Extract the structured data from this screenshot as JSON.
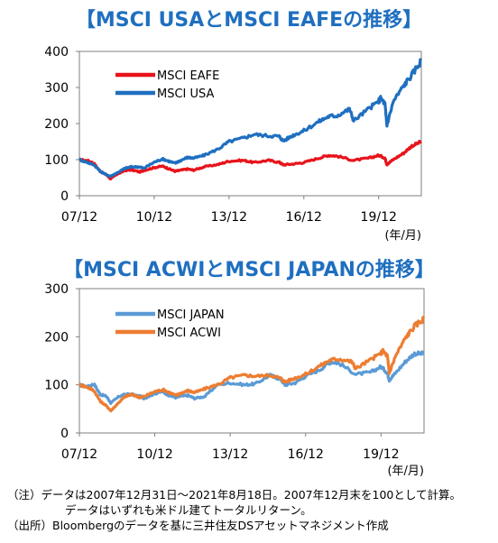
{
  "title1": "【MSCI USAとMSCI EAFEの推移】",
  "title2": "【MSCI ACWIとMSCI JAPANの推移】",
  "notes": {
    "line1": "（注）データは2007年12月31日～2021年8月18日。2007年12月末を100として計算。",
    "line2": "データはいずれも米ドル建てトータルリターン。",
    "line3": "（出所）Bloombergのデータを基に三井住友DSアセットマネジメント作成"
  },
  "chart_data": [
    {
      "type": "line",
      "unit_label": "(年/月)",
      "x_tick_labels": [
        "07/12",
        "10/12",
        "13/12",
        "16/12",
        "19/12"
      ],
      "x_ticks": [
        2007.92,
        2010.92,
        2013.92,
        2016.92,
        2019.92
      ],
      "xlim": [
        2007.92,
        2021.63
      ],
      "ylim": [
        0,
        400
      ],
      "y_ticks": [
        0,
        100,
        200,
        300,
        400
      ],
      "legend_position": "top-left",
      "series": [
        {
          "name": "MSCI EAFE",
          "color": "#e8131b",
          "x": [
            2007.92,
            2008.25,
            2008.5,
            2008.75,
            2009.0,
            2009.17,
            2009.5,
            2009.75,
            2010.0,
            2010.33,
            2010.5,
            2010.92,
            2011.25,
            2011.5,
            2011.75,
            2011.92,
            2012.25,
            2012.5,
            2012.92,
            2013.5,
            2013.92,
            2014.5,
            2014.92,
            2015.5,
            2015.92,
            2016.1,
            2016.5,
            2016.92,
            2017.5,
            2017.92,
            2018.25,
            2018.92,
            2019.5,
            2019.92,
            2020.17,
            2020.25,
            2020.5,
            2020.92,
            2021.25,
            2021.63
          ],
          "values": [
            100,
            97,
            90,
            68,
            58,
            47,
            62,
            70,
            72,
            66,
            70,
            78,
            82,
            75,
            68,
            70,
            74,
            71,
            80,
            87,
            96,
            98,
            92,
            98,
            93,
            86,
            88,
            92,
            104,
            112,
            110,
            98,
            104,
            112,
            105,
            87,
            100,
            118,
            138,
            150
          ]
        },
        {
          "name": "MSCI USA",
          "color": "#1f6fc0",
          "x": [
            2007.92,
            2008.25,
            2008.5,
            2008.75,
            2009.0,
            2009.17,
            2009.5,
            2009.75,
            2010.0,
            2010.33,
            2010.5,
            2010.92,
            2011.25,
            2011.5,
            2011.75,
            2011.92,
            2012.25,
            2012.5,
            2012.92,
            2013.5,
            2013.92,
            2014.5,
            2014.92,
            2015.5,
            2015.92,
            2016.1,
            2016.5,
            2016.92,
            2017.5,
            2017.92,
            2018.25,
            2018.75,
            2018.92,
            2019.5,
            2019.92,
            2020.0,
            2020.17,
            2020.25,
            2020.5,
            2020.92,
            2021.25,
            2021.63
          ],
          "values": [
            100,
            92,
            86,
            68,
            58,
            54,
            66,
            76,
            80,
            80,
            76,
            93,
            102,
            96,
            90,
            96,
            106,
            104,
            112,
            130,
            150,
            160,
            170,
            166,
            165,
            152,
            168,
            180,
            205,
            220,
            222,
            240,
            208,
            240,
            262,
            270,
            255,
            195,
            260,
            305,
            335,
            375
          ]
        }
      ]
    },
    {
      "type": "line",
      "unit_label": "(年/月)",
      "x_tick_labels": [
        "07/12",
        "10/12",
        "13/12",
        "16/12",
        "19/12"
      ],
      "x_ticks": [
        2007.92,
        2010.92,
        2013.92,
        2016.92,
        2019.92
      ],
      "xlim": [
        2007.92,
        2021.63
      ],
      "ylim": [
        0,
        300
      ],
      "y_ticks": [
        0,
        100,
        200,
        300
      ],
      "legend_position": "top-left",
      "series": [
        {
          "name": "MSCI JAPAN",
          "color": "#5b9bd5",
          "x": [
            2007.92,
            2008.25,
            2008.5,
            2008.75,
            2009.0,
            2009.17,
            2009.5,
            2009.75,
            2010.0,
            2010.33,
            2010.5,
            2010.92,
            2011.2,
            2011.5,
            2011.75,
            2011.92,
            2012.25,
            2012.5,
            2012.92,
            2013.4,
            2013.92,
            2014.5,
            2014.92,
            2015.5,
            2015.92,
            2016.1,
            2016.5,
            2016.92,
            2017.5,
            2017.92,
            2018.25,
            2018.92,
            2019.5,
            2019.92,
            2020.17,
            2020.25,
            2020.5,
            2020.92,
            2021.25,
            2021.63
          ],
          "values": [
            100,
            96,
            102,
            80,
            76,
            62,
            76,
            80,
            80,
            76,
            72,
            82,
            86,
            78,
            74,
            76,
            78,
            72,
            76,
            100,
            104,
            100,
            102,
            120,
            112,
            100,
            104,
            118,
            132,
            148,
            145,
            122,
            126,
            138,
            125,
            110,
            125,
            150,
            165,
            165
          ]
        },
        {
          "name": "MSCI ACWI",
          "color": "#ed7d31",
          "x": [
            2007.92,
            2008.25,
            2008.5,
            2008.75,
            2009.0,
            2009.17,
            2009.5,
            2009.75,
            2010.0,
            2010.33,
            2010.5,
            2010.92,
            2011.25,
            2011.5,
            2011.75,
            2011.92,
            2012.25,
            2012.5,
            2012.92,
            2013.5,
            2013.92,
            2014.5,
            2014.92,
            2015.5,
            2015.92,
            2016.1,
            2016.5,
            2016.92,
            2017.5,
            2017.92,
            2018.25,
            2018.75,
            2018.92,
            2019.5,
            2019.92,
            2020.0,
            2020.17,
            2020.25,
            2020.5,
            2020.92,
            2021.25,
            2021.63
          ],
          "values": [
            100,
            95,
            88,
            66,
            56,
            46,
            64,
            76,
            80,
            74,
            76,
            86,
            90,
            84,
            78,
            82,
            88,
            84,
            92,
            102,
            115,
            120,
            118,
            120,
            114,
            106,
            114,
            122,
            140,
            152,
            154,
            148,
            134,
            152,
            166,
            170,
            160,
            125,
            160,
            200,
            222,
            238
          ]
        }
      ]
    }
  ]
}
